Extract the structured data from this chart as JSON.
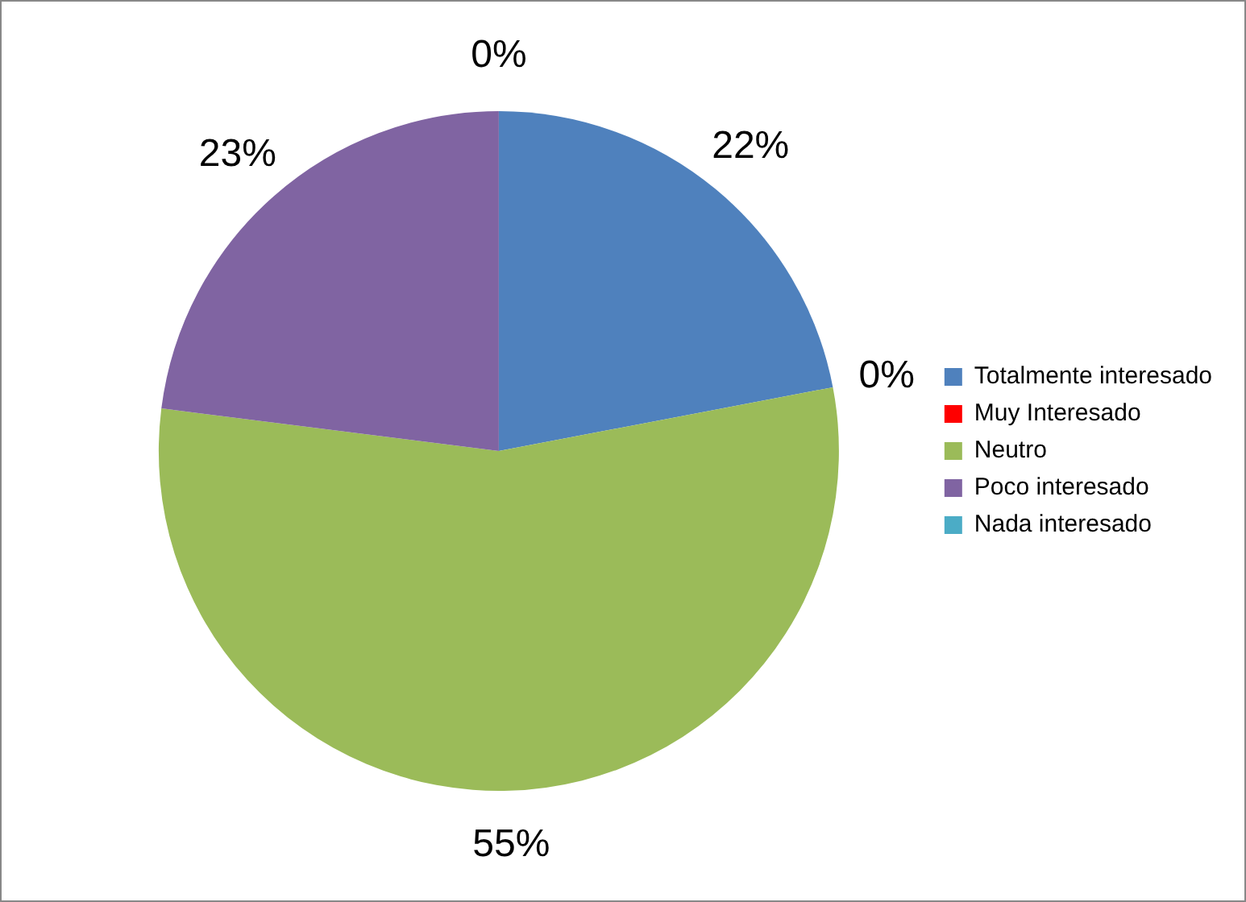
{
  "chart_data": {
    "type": "pie",
    "categories": [
      "Totalmente interesado",
      "Muy Interesado",
      "Neutro",
      "Poco interesado",
      "Nada interesado"
    ],
    "values": [
      22,
      0,
      55,
      23,
      0
    ],
    "colors": [
      "#4f81bd",
      "#ff0000",
      "#9bbb59",
      "#8064a2",
      "#4bacc6"
    ],
    "value_labels": [
      "22%",
      "0%",
      "55%",
      "23%",
      "0%"
    ],
    "legend": "right"
  }
}
